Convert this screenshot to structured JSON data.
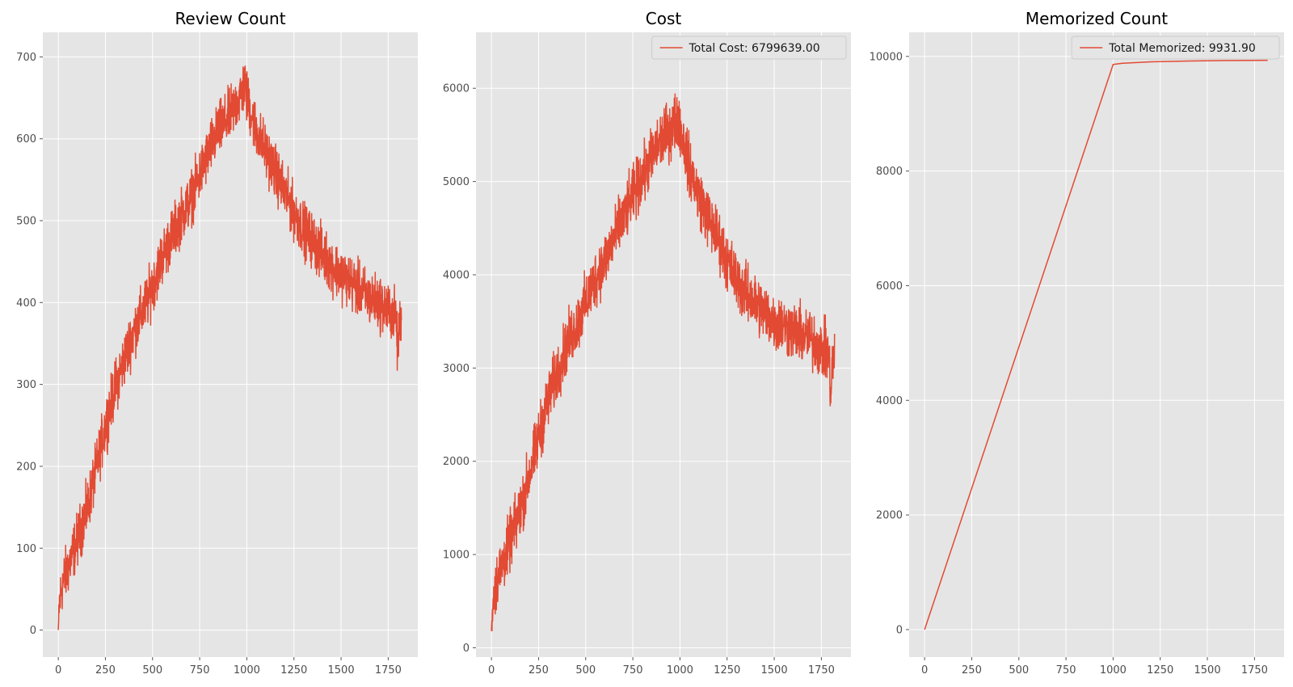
{
  "chart_data": [
    {
      "type": "line",
      "title": "Review Count",
      "xlabel": "",
      "ylabel": "",
      "xlim": [
        -82,
        1907
      ],
      "ylim": [
        -33,
        730
      ],
      "xticks": [
        0,
        250,
        500,
        750,
        1000,
        1250,
        1500,
        1750
      ],
      "yticks": [
        0,
        100,
        200,
        300,
        400,
        500,
        600,
        700
      ],
      "grid": true,
      "legend": null,
      "series": [
        {
          "color": "#e24a33",
          "noise": 16,
          "x": [
            0,
            5,
            20,
            50,
            100,
            150,
            200,
            250,
            300,
            350,
            400,
            450,
            500,
            550,
            600,
            650,
            700,
            750,
            800,
            850,
            900,
            950,
            990,
            1000,
            1050,
            1100,
            1150,
            1200,
            1250,
            1300,
            1350,
            1400,
            1450,
            1500,
            1550,
            1600,
            1650,
            1700,
            1750,
            1790,
            1800,
            1810,
            1820
          ],
          "y": [
            0,
            30,
            55,
            75,
            110,
            145,
            195,
            250,
            295,
            330,
            365,
            390,
            420,
            455,
            480,
            505,
            525,
            555,
            585,
            610,
            625,
            645,
            665,
            650,
            610,
            585,
            560,
            535,
            510,
            490,
            475,
            460,
            445,
            435,
            425,
            415,
            405,
            400,
            390,
            385,
            340,
            370,
            380
          ]
        }
      ]
    },
    {
      "type": "line",
      "title": "Cost",
      "xlabel": "",
      "ylabel": "",
      "xlim": [
        -82,
        1907
      ],
      "ylim": [
        -100,
        6600
      ],
      "xticks": [
        0,
        250,
        500,
        750,
        1000,
        1250,
        1500,
        1750
      ],
      "yticks": [
        0,
        1000,
        2000,
        3000,
        4000,
        5000,
        6000
      ],
      "grid": true,
      "legend": {
        "position": "top-right",
        "entries": [
          "Total Cost: 6799639.00"
        ]
      },
      "series": [
        {
          "color": "#e24a33",
          "noise": 150,
          "x": [
            0,
            5,
            20,
            50,
            100,
            150,
            200,
            250,
            300,
            350,
            400,
            450,
            500,
            550,
            600,
            650,
            700,
            750,
            800,
            850,
            900,
            950,
            990,
            1000,
            1050,
            1100,
            1150,
            1200,
            1250,
            1300,
            1350,
            1400,
            1450,
            1500,
            1550,
            1600,
            1650,
            1700,
            1750,
            1790,
            1800,
            1810,
            1820
          ],
          "y": [
            180,
            450,
            650,
            850,
            1150,
            1450,
            1850,
            2250,
            2650,
            2950,
            3250,
            3450,
            3700,
            3950,
            4150,
            4400,
            4600,
            4850,
            5050,
            5250,
            5450,
            5550,
            5700,
            5600,
            5150,
            4850,
            4600,
            4400,
            4150,
            3950,
            3800,
            3700,
            3600,
            3500,
            3450,
            3400,
            3350,
            3300,
            3200,
            3150,
            2700,
            3050,
            3150
          ]
        }
      ]
    },
    {
      "type": "line",
      "title": "Memorized Count",
      "xlabel": "",
      "ylabel": "",
      "xlim": [
        -82,
        1907
      ],
      "ylim": [
        -480,
        10420
      ],
      "xticks": [
        0,
        250,
        500,
        750,
        1000,
        1250,
        1500,
        1750
      ],
      "yticks": [
        0,
        2000,
        4000,
        6000,
        8000,
        10000
      ],
      "grid": true,
      "legend": {
        "position": "top-right",
        "entries": [
          "Total Memorized: 9931.90"
        ]
      },
      "series": [
        {
          "color": "#e24a33",
          "noise": 0,
          "x": [
            0,
            1000,
            1050,
            1200,
            1400,
            1600,
            1820
          ],
          "y": [
            0,
            9860,
            9880,
            9905,
            9920,
            9928,
            9932
          ]
        }
      ]
    }
  ]
}
